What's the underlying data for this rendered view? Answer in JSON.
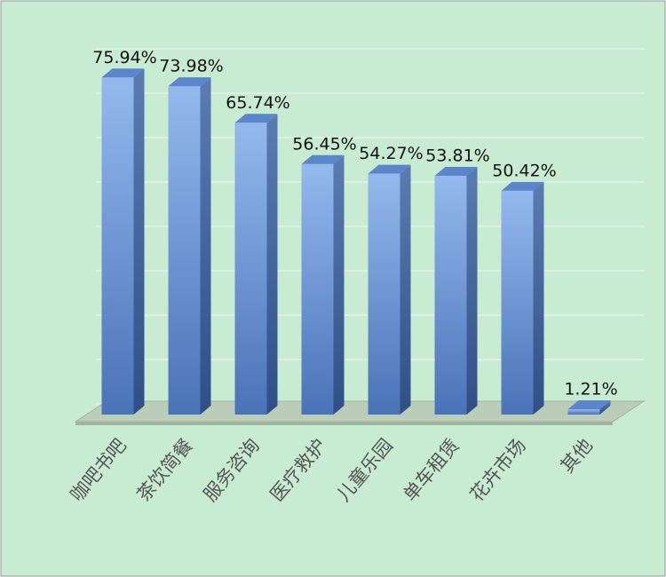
{
  "chart_data": {
    "type": "bar3d",
    "categories": [
      "咖吧书吧",
      "茶饮简餐",
      "服务咨询",
      "医疗救护",
      "儿童乐园",
      "单车租赁",
      "花卉市场",
      "其他"
    ],
    "values": [
      75.94,
      73.98,
      65.74,
      56.45,
      54.27,
      53.81,
      50.42,
      1.21
    ],
    "value_labels": [
      "75.94%",
      "73.98%",
      "65.74%",
      "56.45%",
      "54.27%",
      "53.81%",
      "50.42%",
      "1.21%"
    ],
    "color": "#5b86cc",
    "ylim": [
      0,
      80
    ],
    "yticks": [
      0,
      10,
      20,
      30,
      40,
      50,
      60,
      70,
      80
    ],
    "grid": true
  }
}
